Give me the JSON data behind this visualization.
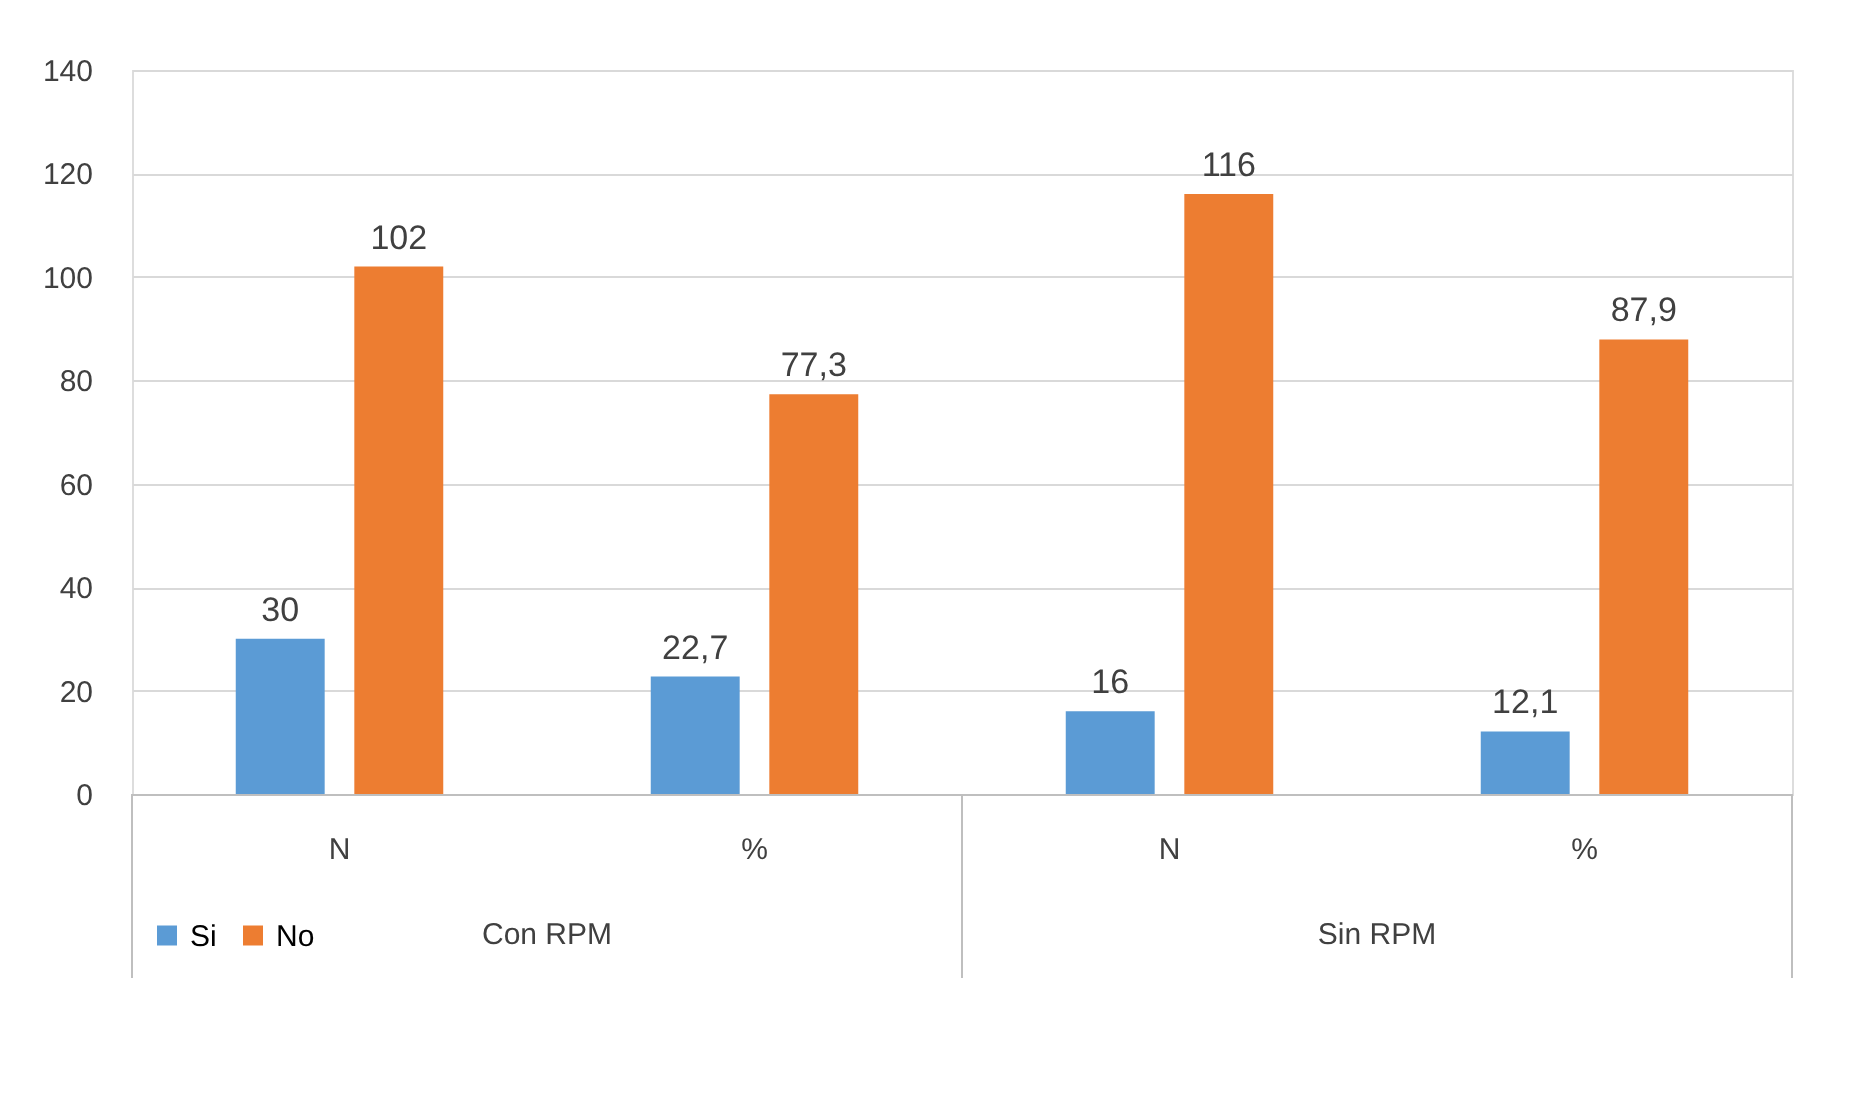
{
  "chart_data": {
    "type": "bar",
    "categories": [
      "N",
      "%",
      "N",
      "%"
    ],
    "series": [
      {
        "name": "Si",
        "color": "#5b9bd5",
        "values": [
          30,
          22.7,
          16,
          12.1
        ],
        "value_labels": [
          "30",
          "22,7",
          "16",
          "12,1"
        ]
      },
      {
        "name": "No",
        "color": "#ed7d31",
        "values": [
          102,
          77.3,
          116,
          87.9
        ],
        "value_labels": [
          "102",
          "77,3",
          "116",
          "87,9"
        ]
      }
    ],
    "annotations": [
      "Con RPM",
      "Sin RPM"
    ],
    "ylim": [
      0,
      140
    ],
    "yticks": [
      0,
      20,
      40,
      60,
      80,
      100,
      120,
      140
    ],
    "grid": "y",
    "legend": "bottom"
  }
}
